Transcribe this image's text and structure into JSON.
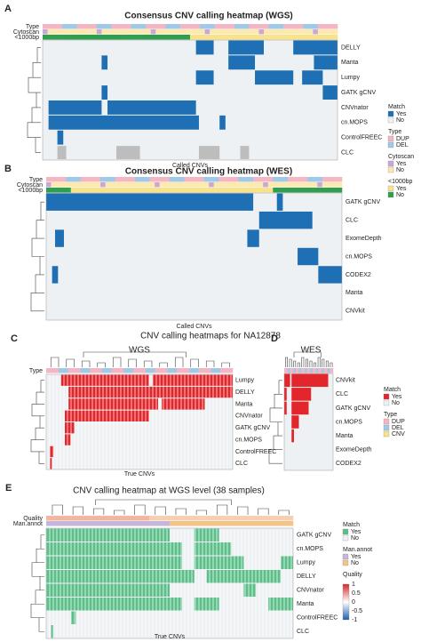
{
  "panels": [
    {
      "label": "A",
      "title": "Consensus CNV calling heatmap (WGS)",
      "annotations": [
        "Type",
        "Cytoscan",
        "<1000bp"
      ],
      "rows": [
        "DELLY",
        "Manta",
        "Lumpy",
        "GATK gCNV",
        "CNVnator",
        "cn.MOPS",
        "ControlFREEC",
        "CLC"
      ],
      "xlabel": "Called CNVs"
    },
    {
      "label": "B",
      "title": "Consensus CNV calling heatmap (WES)",
      "annotations": [
        "Type",
        "Cytoscan",
        "<1000bp"
      ],
      "rows": [
        "GATK gCNV",
        "CLC",
        "ExomeDepth",
        "cn.MOPS",
        "CODEX2",
        "Manta",
        "CNVkit"
      ],
      "xlabel": "Called CNVs"
    },
    {
      "label": "C",
      "title": "WGS",
      "annotations": [
        "Type"
      ],
      "rows": [
        "Lumpy",
        "DELLY",
        "Manta",
        "CNVnator",
        "GATK gCNV",
        "cn.MOPS",
        "ControlFREEC",
        "CLC"
      ],
      "xlabel": "True CNVs"
    },
    {
      "label": "D",
      "title": "WES",
      "annotations": [],
      "rows": [
        "CNVkit",
        "CLC",
        "GATK gCNV",
        "cn.MOPS",
        "Manta",
        "ExomeDepth",
        "CODEX2"
      ],
      "xlabel": ""
    },
    {
      "label": "E",
      "title": "CNV calling heatmap at WGS level (38 samples)",
      "annotations": [
        "Quality",
        "Man.annot"
      ],
      "rows": [
        "GATK gCNV",
        "cn.MOPS",
        "Lumpy",
        "DELLY",
        "CNVnator",
        "Manta",
        "ControlFREEC",
        "CLC"
      ],
      "xlabel": "True CNVs"
    }
  ],
  "section_title": "CNV calling heatmaps for NA12878",
  "legends": [
    {
      "groups": [
        {
          "title": "Match",
          "items": [
            "Yes",
            "No"
          ]
        },
        {
          "title": "Type",
          "items": [
            "DUP",
            "DEL"
          ]
        },
        {
          "title": "Cytoscan",
          "items": [
            "Yes",
            "No"
          ]
        },
        {
          "title": "<1000bp",
          "items": [
            "Yes",
            "No"
          ]
        }
      ]
    },
    {
      "groups": [
        {
          "title": "Match",
          "items": [
            "Yes",
            "No"
          ]
        },
        {
          "title": "Type",
          "items": [
            "DUP",
            "DEL",
            "CNV"
          ]
        }
      ]
    },
    {
      "groups": [
        {
          "title": "Match",
          "items": [
            "Yes",
            "No"
          ]
        },
        {
          "title": "Man.annot",
          "items": [
            "Yes",
            "No"
          ]
        },
        {
          "title": "Quality",
          "items": []
        }
      ],
      "colorbar": [
        "1",
        "0.5",
        "0",
        "-0.5",
        "-1"
      ]
    }
  ]
}
